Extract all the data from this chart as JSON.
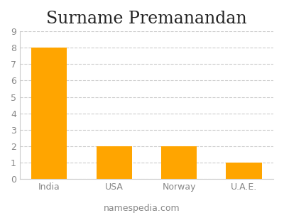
{
  "title": "Surname Premanandan",
  "categories": [
    "India",
    "USA",
    "Norway",
    "U.A.E."
  ],
  "values": [
    8,
    2,
    2,
    1
  ],
  "bar_color": "#FFA500",
  "ylim": [
    0,
    9
  ],
  "yticks": [
    0,
    1,
    2,
    3,
    4,
    5,
    6,
    7,
    8,
    9
  ],
  "title_fontsize": 17,
  "tick_fontsize": 9,
  "footer_text": "namespedia.com",
  "footer_fontsize": 9,
  "background_color": "#ffffff",
  "grid_color": "#cccccc",
  "bar_width": 0.55
}
